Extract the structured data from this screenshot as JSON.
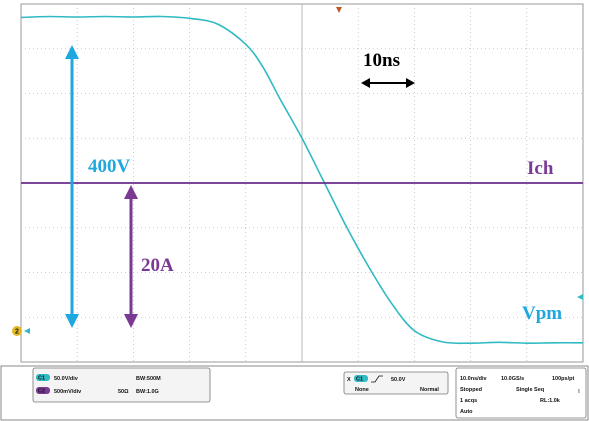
{
  "chart_data": {
    "type": "line",
    "title": "",
    "xlabel": "",
    "ylabel": "",
    "grid": true,
    "grid_divisions": {
      "x": 10,
      "y": 8
    },
    "xlim": [
      0,
      10
    ],
    "ylim": [
      -4,
      4
    ],
    "series": [
      {
        "name": "Vpm",
        "color": "#2fbac4",
        "x": [
          0,
          0.5,
          1,
          1.5,
          2,
          2.5,
          3,
          3.5,
          4,
          4.3,
          4.6,
          5,
          5.4,
          5.8,
          6.2,
          6.6,
          7,
          7.5,
          8,
          8.5,
          9,
          9.5,
          10
        ],
        "y": [
          3.7,
          3.72,
          3.71,
          3.72,
          3.71,
          3.72,
          3.68,
          3.55,
          3.1,
          2.6,
          1.9,
          1.0,
          0.0,
          -1.0,
          -1.9,
          -2.7,
          -3.3,
          -3.55,
          -3.58,
          -3.56,
          -3.58,
          -3.57,
          -3.57
        ]
      },
      {
        "name": "Ich",
        "color": "#6a2c8c",
        "x": [
          0,
          10
        ],
        "y": [
          0.0,
          0.0
        ]
      }
    ],
    "annotations": {
      "time_scale": "10ns",
      "voltage_swing": "400V",
      "current_swing": "20A",
      "label_ich": "Ich",
      "label_vpm": "Vpm",
      "channel_marker": "2"
    }
  },
  "colors": {
    "voltage": "#1fa7e0",
    "current": "#7a3a94",
    "vtrace": "#2fbac4",
    "itrace": "#6a2c8c",
    "grid": "#8a8a8a"
  },
  "status_bar": {
    "ch1_badge": "C1",
    "ch1_scale": "50.0V/div",
    "ch1_bw": "BW:500M",
    "ch2_badge": "C2",
    "ch2_scale": "500mV/div",
    "ch2_imp": "50Ω",
    "ch2_bw": "BW:1.0G",
    "trig_badge": "C1",
    "trig_level": "50.0V",
    "trig_none": "None",
    "trig_mode": "Normal",
    "time_div": "10.0ns/div",
    "sample_rate": "10.0GS/s",
    "pts": "100ps/pt",
    "state": "Stopped",
    "acq_mode": "Single Seq",
    "acqs": "1 acqs",
    "rl": "RL:1.0k",
    "auto": "Auto"
  }
}
